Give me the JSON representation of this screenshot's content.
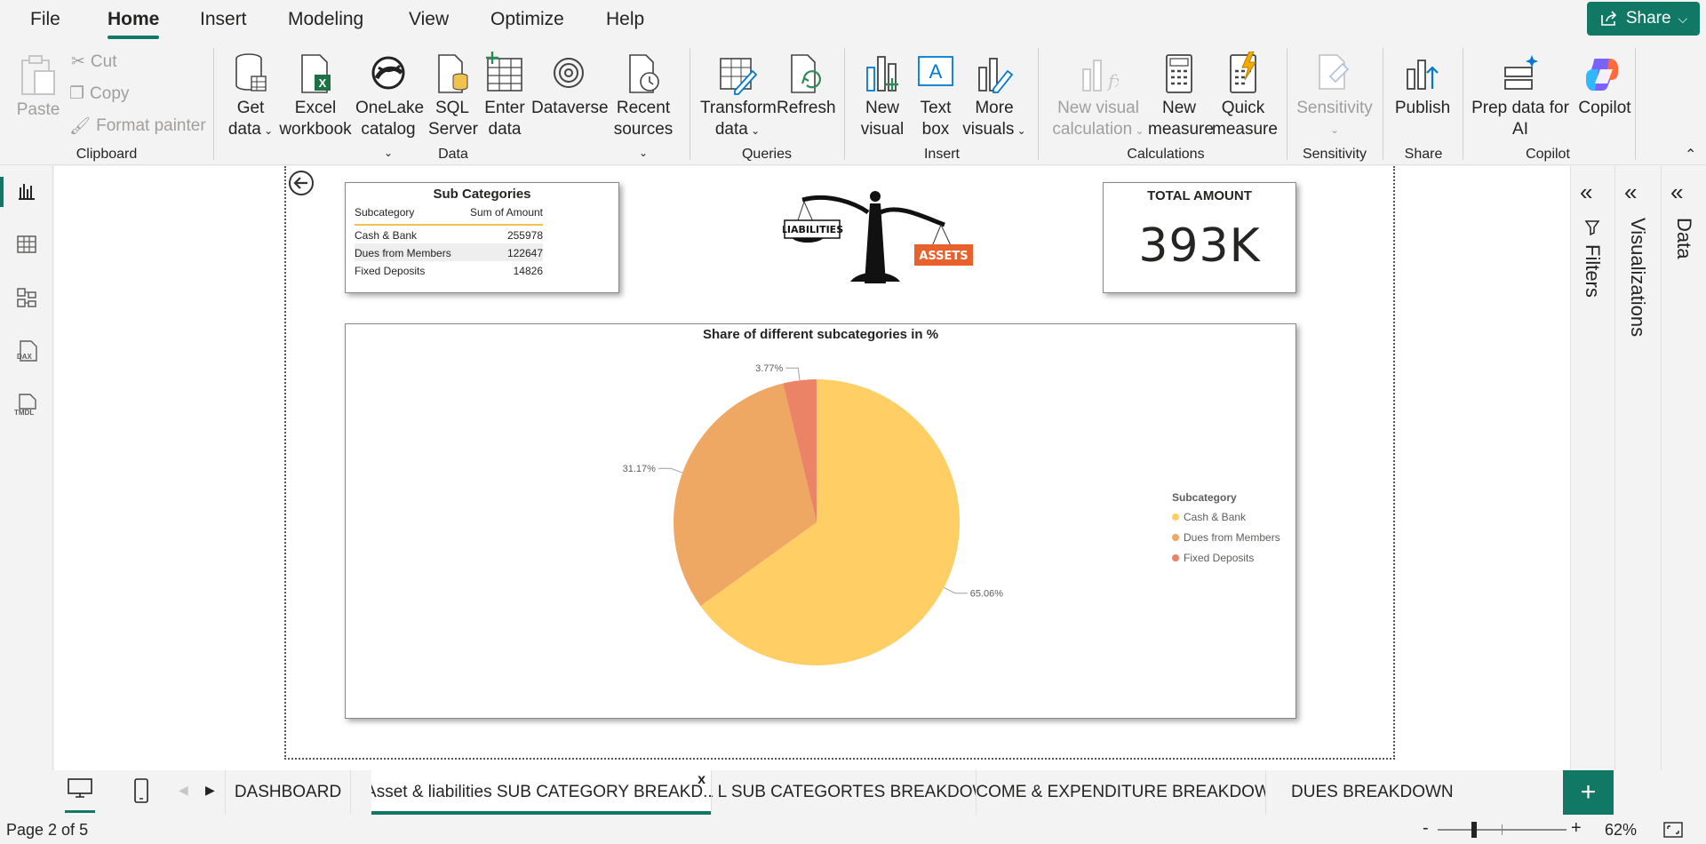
{
  "menu": {
    "items": [
      "File",
      "Home",
      "Insert",
      "Modeling",
      "View",
      "Optimize",
      "Help"
    ],
    "active": "Home",
    "share_label": "Share"
  },
  "ribbon": {
    "clipboard": {
      "paste": "Paste",
      "cut": "Cut",
      "copy": "Copy",
      "format_painter": "Format painter",
      "label": "Clipboard"
    },
    "data": {
      "get_data": [
        "Get",
        "data"
      ],
      "excel": [
        "Excel",
        "workbook"
      ],
      "onelake": [
        "OneLake",
        "catalog"
      ],
      "sql": [
        "SQL",
        "Server"
      ],
      "enter": [
        "Enter",
        "data"
      ],
      "dataverse": "Dataverse",
      "recent": [
        "Recent",
        "sources"
      ],
      "label": "Data"
    },
    "queries": {
      "transform": [
        "Transform",
        "data"
      ],
      "refresh": "Refresh",
      "label": "Queries"
    },
    "insert": {
      "new_visual": [
        "New",
        "visual"
      ],
      "text_box": [
        "Text",
        "box"
      ],
      "more_visuals": [
        "More",
        "visuals"
      ],
      "label": "Insert"
    },
    "calculations": {
      "new_visual_calc": [
        "New visual",
        "calculation"
      ],
      "new_measure": [
        "New",
        "measure"
      ],
      "quick_measure": [
        "Quick",
        "measure"
      ],
      "label": "Calculations"
    },
    "sensitivity": {
      "button": "Sensitivity",
      "label": "Sensitivity"
    },
    "share": {
      "publish": "Publish",
      "label": "Share"
    },
    "copilot": {
      "prep": [
        "Prep data for",
        "AI"
      ],
      "copilot": "Copilot",
      "label": "Copilot"
    }
  },
  "report": {
    "table": {
      "title": "Sub Categories",
      "headers": [
        "Subcategory",
        "Sum of Amount"
      ],
      "rows": [
        [
          "Cash & Bank",
          "255978"
        ],
        [
          "Dues from Members",
          "122647"
        ],
        [
          "Fixed Deposits",
          "14826"
        ]
      ]
    },
    "logo": {
      "left_label": "LIABILITIES",
      "right_label": "ASSETS"
    },
    "kpi": {
      "title": "TOTAL AMOUNT",
      "value": "393K"
    }
  },
  "chart_data": {
    "type": "pie",
    "title": "Share of different subcategories in %",
    "legend_title": "Subcategory",
    "legend_position": "right",
    "categories": [
      "Cash & Bank",
      "Dues from Members",
      "Fixed Deposits"
    ],
    "values": [
      65.06,
      31.17,
      3.77
    ],
    "labels": [
      "65.06%",
      "31.17%",
      "3.77%"
    ],
    "colors": [
      "#FFCE64",
      "#EFA864",
      "#EB8467"
    ]
  },
  "panes": {
    "filters": "Filters",
    "visualizations": "Visualizations",
    "data": "Data"
  },
  "tabs": {
    "items": [
      "DASHBOARD",
      "Asset & liabilities SUB CATEGORY BREAKD...",
      "A & L SUB CATEGORTES BREAKDOWN",
      "INCOME & EXPENDITURE BREAKDOWN",
      "DUES BREAKDOWN"
    ],
    "close": "x",
    "add": "+"
  },
  "status": {
    "page": "Page 2 of 5",
    "zoom": "62%",
    "zoom_minus": "-",
    "zoom_plus": "+"
  }
}
